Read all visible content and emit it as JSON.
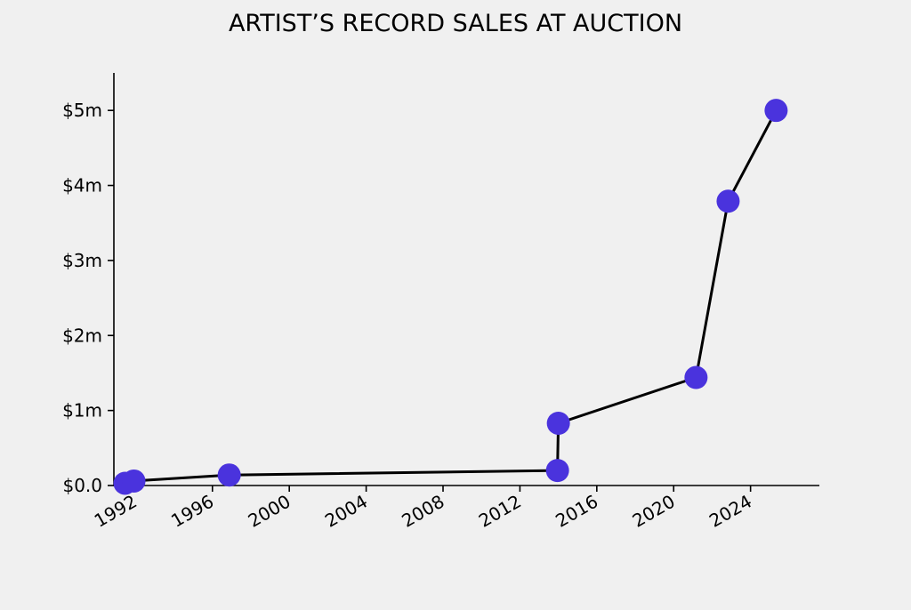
{
  "colors": {
    "background": "#f0f0f0",
    "line": "#000000",
    "marker": "#4a33dd",
    "axis": "#000000"
  },
  "chart_data": {
    "type": "line",
    "title": "ARTIST’S RECORD SALES AT AUCTION",
    "xlabel": "",
    "ylabel": "",
    "x_scale": "date",
    "xlim": [
      "1990-11-15",
      "2027-08-01"
    ],
    "ylim": [
      0,
      5.5
    ],
    "y_unit": "millions USD",
    "x_ticks": [
      {
        "value": "1992-01-01",
        "label": "1992"
      },
      {
        "value": "1996-01-01",
        "label": "1996"
      },
      {
        "value": "2000-01-01",
        "label": "2000"
      },
      {
        "value": "2004-01-01",
        "label": "2004"
      },
      {
        "value": "2008-01-01",
        "label": "2008"
      },
      {
        "value": "2012-01-01",
        "label": "2012"
      },
      {
        "value": "2016-01-01",
        "label": "2016"
      },
      {
        "value": "2020-01-01",
        "label": "2020"
      },
      {
        "value": "2024-01-01",
        "label": "2024"
      }
    ],
    "y_ticks": [
      {
        "value": 0,
        "label": "$0.0"
      },
      {
        "value": 1,
        "label": "$1m"
      },
      {
        "value": 2,
        "label": "$2m"
      },
      {
        "value": 3,
        "label": "$3m"
      },
      {
        "value": 4,
        "label": "$4m"
      },
      {
        "value": 5,
        "label": "$5m"
      }
    ],
    "grid": false,
    "legend": "none",
    "series": [
      {
        "points": [
          {
            "x": "1991-06-15",
            "y": 0.03
          },
          {
            "x": "1991-12-01",
            "y": 0.06
          },
          {
            "x": "1996-11-15",
            "y": 0.14
          },
          {
            "x": "2013-12-15",
            "y": 0.2
          },
          {
            "x": "2014-01-01",
            "y": 0.83
          },
          {
            "x": "2021-03-01",
            "y": 1.44
          },
          {
            "x": "2022-11-01",
            "y": 3.79
          },
          {
            "x": "2025-05-01",
            "y": 5.0
          }
        ]
      }
    ]
  }
}
